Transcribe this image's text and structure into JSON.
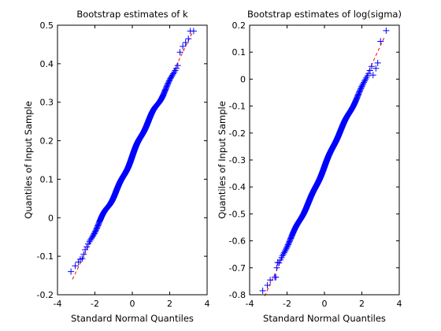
{
  "figure": {
    "background": "#ffffff"
  },
  "chart_data": [
    {
      "type": "scatter",
      "title": "Bootstrap estimates of k",
      "xlabel": "Standard Normal Quantiles",
      "ylabel": "Quantiles of Input Sample",
      "xlim": [
        -4,
        4
      ],
      "ylim": [
        -0.2,
        0.5
      ],
      "xticks": [
        -4,
        -2,
        0,
        2,
        4
      ],
      "yticks": [
        -0.2,
        -0.1,
        0,
        0.1,
        0.2,
        0.3,
        0.4,
        0.5
      ],
      "xtick_labels": [
        "-4",
        "-2",
        "0",
        "2",
        "4"
      ],
      "ytick_labels": [
        "-0.2",
        "-0.1",
        "0",
        "0.1",
        "0.2",
        "0.3",
        "0.4",
        "0.5"
      ],
      "grid": false,
      "marker_color": "#0000ff",
      "line_color": "#ff0000",
      "reference_line": {
        "x": [
          -3.2,
          3.2
        ],
        "y": [
          -0.16,
          0.48
        ]
      },
      "outliers": {
        "x": [
          -3.28,
          -3.05,
          -2.88,
          -2.78,
          -2.68,
          -2.6,
          -2.52,
          2.55,
          2.7,
          2.85,
          3.0,
          3.1,
          3.28
        ],
        "y": [
          -0.14,
          -0.125,
          -0.115,
          -0.108,
          -0.106,
          -0.095,
          -0.083,
          0.43,
          0.445,
          0.455,
          0.465,
          0.485,
          0.485
        ]
      },
      "band": {
        "x_range": [
          -2.45,
          2.5
        ],
        "samples": 600
      }
    },
    {
      "type": "scatter",
      "title": "Bootstrap estimates of log(sigma)",
      "xlabel": "Standard Normal Quantiles",
      "ylabel": "Quantiles of Input Sample",
      "xlim": [
        -4,
        4
      ],
      "ylim": [
        -0.8,
        0.2
      ],
      "xticks": [
        -4,
        -2,
        0,
        2,
        4
      ],
      "yticks": [
        -0.8,
        -0.7,
        -0.6,
        -0.5,
        -0.4,
        -0.3,
        -0.2,
        -0.1,
        0,
        0.1,
        0.2
      ],
      "xtick_labels": [
        "-4",
        "-2",
        "0",
        "2",
        "4"
      ],
      "ytick_labels": [
        "-0.8",
        "-0.7",
        "-0.6",
        "-0.5",
        "-0.4",
        "-0.3",
        "-0.2",
        "-0.1",
        "0",
        "0.1",
        "0.2"
      ],
      "grid": false,
      "marker_color": "#0000ff",
      "line_color": "#ff0000",
      "reference_line": {
        "x": [
          -3.2,
          3.2
        ],
        "y": [
          -0.805,
          0.155
        ]
      },
      "outliers": {
        "x": [
          -3.3,
          -3.05,
          -2.9,
          -2.65,
          -2.6,
          -2.55,
          -2.5,
          2.6,
          2.75,
          2.85,
          3.0,
          3.3
        ],
        "y": [
          -0.785,
          -0.765,
          -0.745,
          -0.735,
          -0.735,
          -0.7,
          -0.68,
          0.015,
          0.04,
          0.06,
          0.14,
          0.18
        ]
      },
      "band": {
        "x_range": [
          -2.45,
          2.55
        ],
        "samples": 600
      }
    }
  ]
}
